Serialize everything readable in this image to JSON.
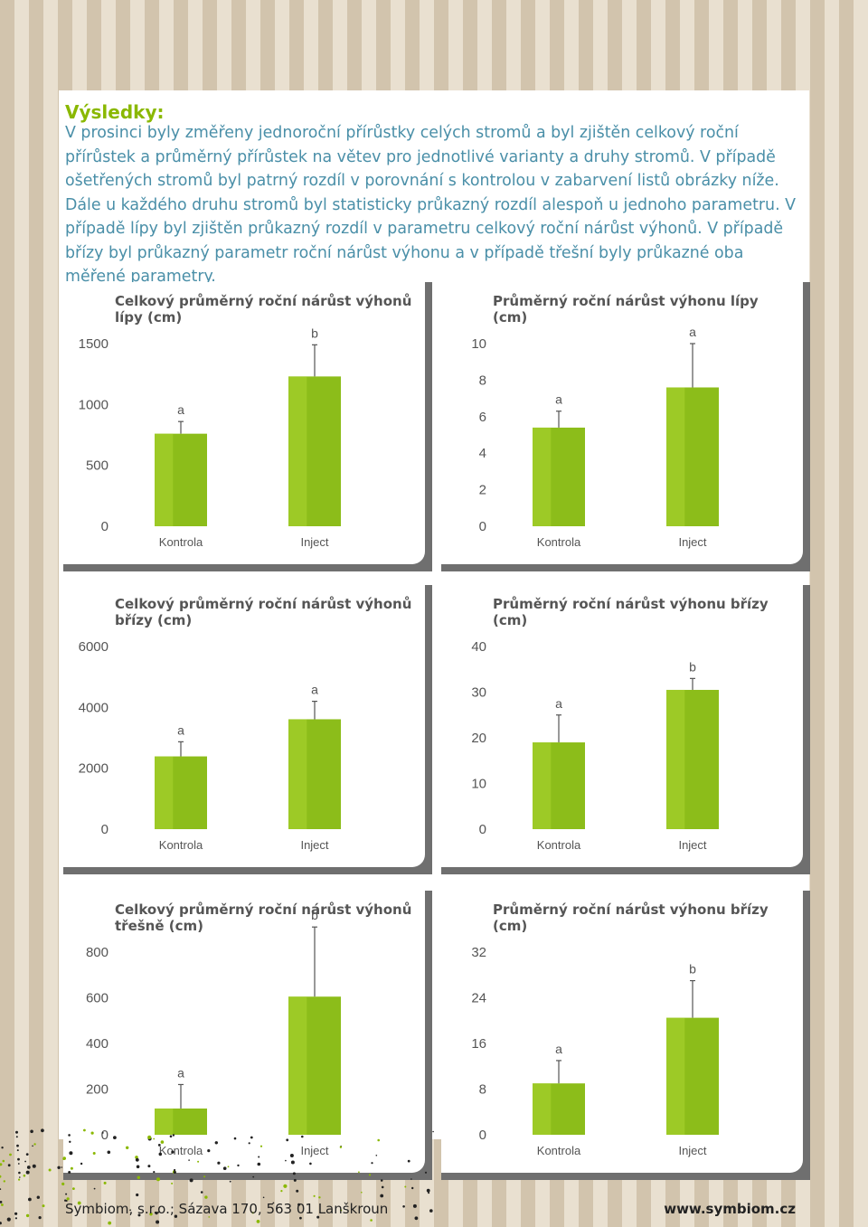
{
  "results": {
    "heading": "Výsledky:",
    "text": "V prosinci byly změřeny jednoroční přírůstky celých stromů a byl zjištěn celkový roční přírůstek a průměrný přírůstek na větev pro jednotlivé varianty a druhy stromů. V případě ošetřených stromů byl patrný rozdíl v porovnání s kontrolou v zabarvení listů obrázky níže. Dále u každého druhu stromů byl statisticky průkazný rozdíl alespoň u jednoho parametru. V případě lípy byl zjištěn průkazný rozdíl v parametru celkový roční nárůst výhonů. V případě břízy byl průkazný parametr roční nárůst výhonu a v případě třešní byly průkazné oba měřené parametry."
  },
  "colors": {
    "bar_fill": "#8cbd1a",
    "bar_highlight": "#a9d22e",
    "text_blue": "#4a8fa8",
    "heading_green": "#8ab800"
  },
  "chart_data": [
    {
      "type": "bar",
      "title": "Celkový průměrný roční nárůst výhonů lípy (cm)",
      "categories": [
        "Kontrola",
        "Inject"
      ],
      "values": [
        760,
        1230
      ],
      "error_high": [
        860,
        1490
      ],
      "significance": [
        "a",
        "b"
      ],
      "ylim": [
        0,
        1500
      ],
      "yticks": [
        0,
        500,
        1000,
        1500
      ]
    },
    {
      "type": "bar",
      "title": "Průměrný roční nárůst výhonu lípy (cm)",
      "categories": [
        "Kontrola",
        "Inject"
      ],
      "values": [
        5.4,
        7.6
      ],
      "error_high": [
        6.3,
        10.0
      ],
      "significance": [
        "a",
        "a"
      ],
      "ylim": [
        0,
        10
      ],
      "yticks": [
        0,
        2,
        4,
        6,
        8,
        10
      ]
    },
    {
      "type": "bar",
      "title": "Celkový průměrný roční nárůst výhonů břízy (cm)",
      "categories": [
        "Kontrola",
        "Inject"
      ],
      "values": [
        2390,
        3610
      ],
      "error_high": [
        2870,
        4200
      ],
      "significance": [
        "a",
        "a"
      ],
      "ylim": [
        0,
        6000
      ],
      "yticks": [
        0,
        2000,
        4000,
        6000
      ]
    },
    {
      "type": "bar",
      "title": "Průměrný roční nárůst výhonu břízy (cm)",
      "categories": [
        "Kontrola",
        "Inject"
      ],
      "values": [
        19,
        30.5
      ],
      "error_high": [
        25,
        33
      ],
      "significance": [
        "a",
        "b"
      ],
      "ylim": [
        0,
        40
      ],
      "yticks": [
        0,
        10,
        20,
        30,
        40
      ]
    },
    {
      "type": "bar",
      "title": "Celkový průměrný roční nárůst výhonů třešně (cm)",
      "categories": [
        "Kontrola",
        "Inject"
      ],
      "values": [
        115,
        605
      ],
      "error_high": [
        220,
        910
      ],
      "significance": [
        "a",
        "b"
      ],
      "ylim": [
        0,
        800
      ],
      "yticks": [
        0,
        200,
        400,
        600,
        800
      ]
    },
    {
      "type": "bar",
      "title": "Průměrný roční nárůst výhonu břízy (cm)",
      "categories": [
        "Kontrola",
        "Inject"
      ],
      "values": [
        9,
        20.5
      ],
      "error_high": [
        13,
        27
      ],
      "significance": [
        "a",
        "b"
      ],
      "ylim": [
        0,
        32
      ],
      "yticks": [
        0,
        8,
        16,
        24,
        32
      ]
    }
  ],
  "footer": {
    "address": "Symbiom, s.r.o.; Sázava 170, 563 01 Lanškroun",
    "website": "www.symbiom.cz"
  }
}
